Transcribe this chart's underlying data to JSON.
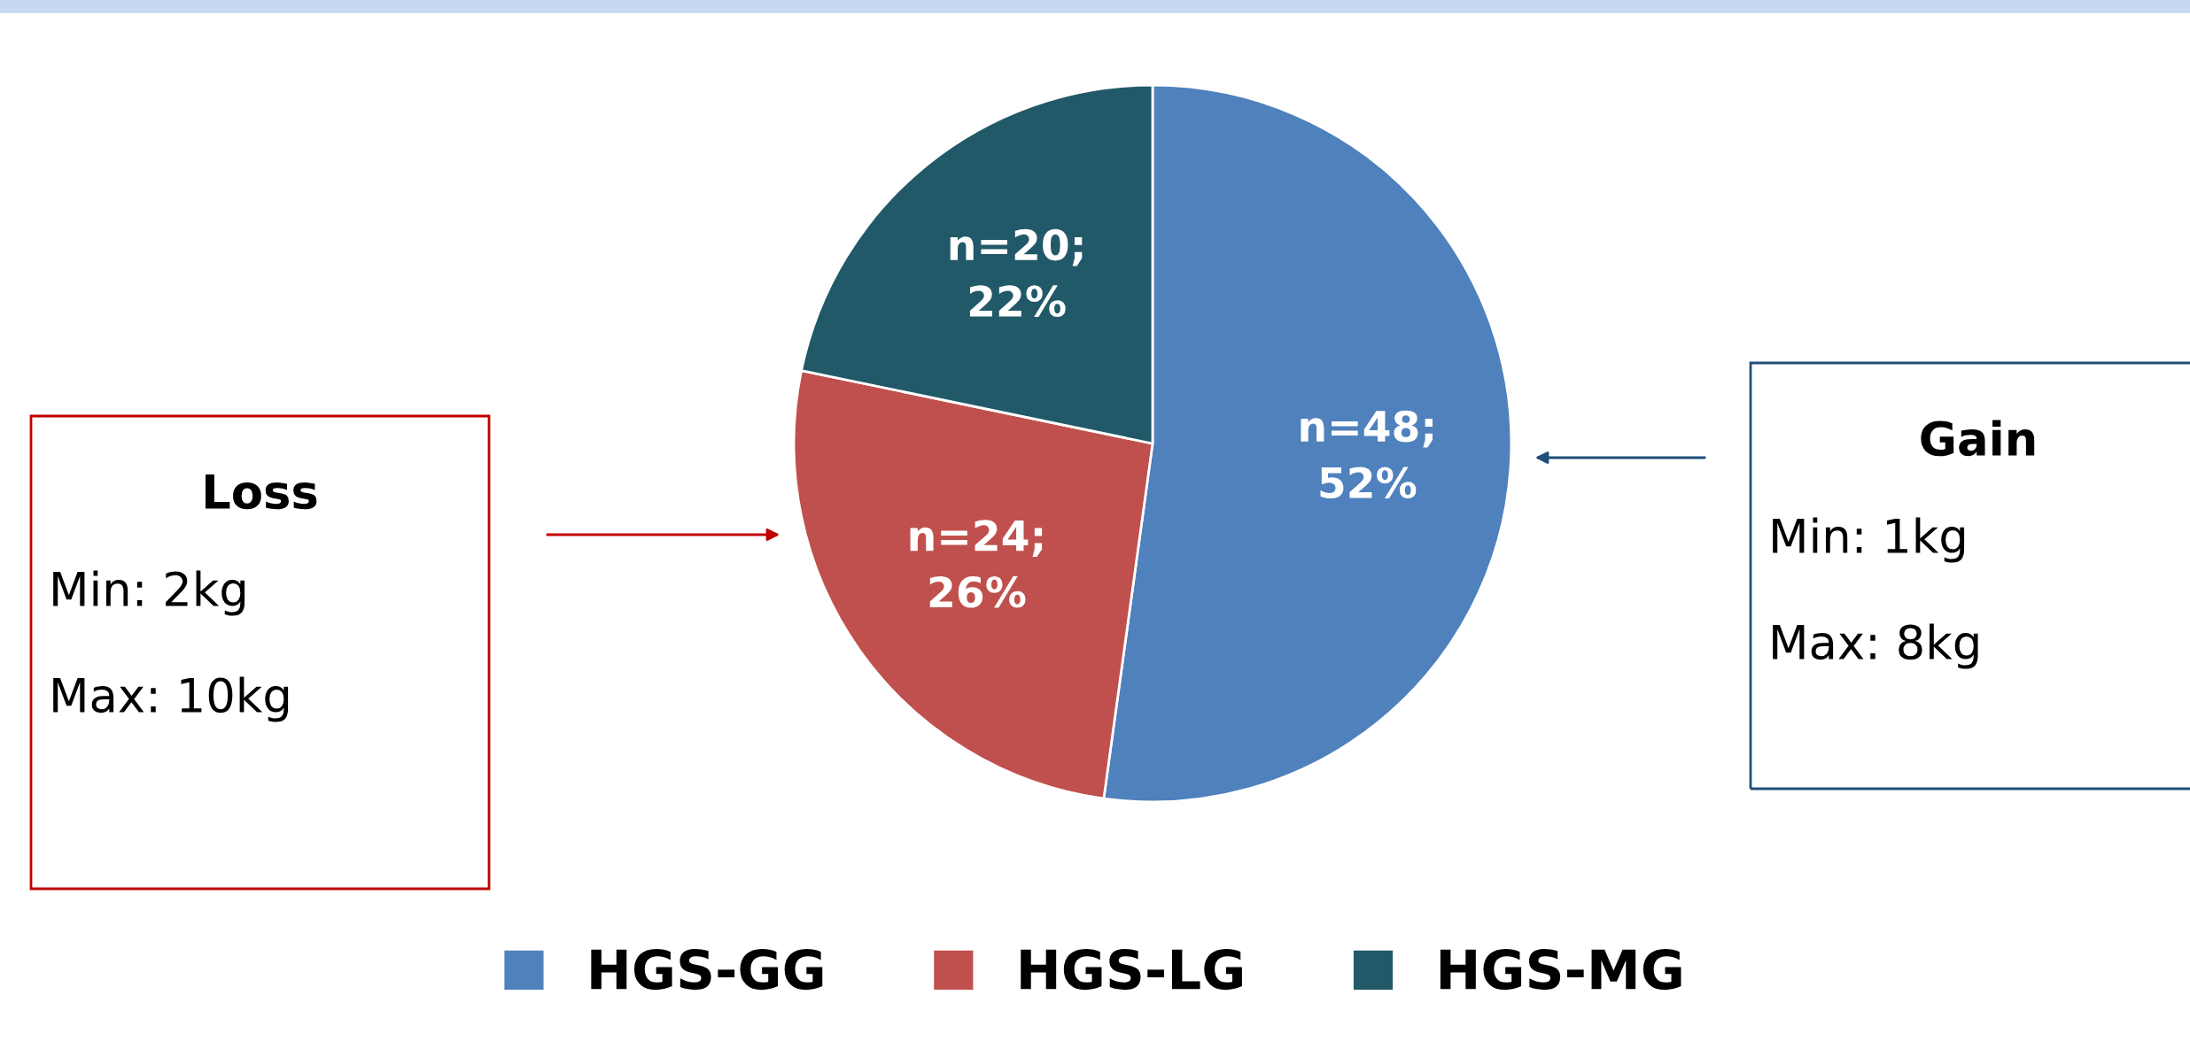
{
  "chart_data": {
    "type": "pie",
    "categories": [
      "HGS-GG",
      "HGS-LG",
      "HGS-MG"
    ],
    "values": [
      48,
      24,
      20
    ],
    "value_labels": [
      "n=48;\n52%",
      "n=24;\n26%",
      "n=20;\n22%"
    ],
    "colors": [
      "#4f81bd",
      "#c0504d",
      "#215968"
    ],
    "legend": "bottom",
    "annotations": [
      "Loss\nMin: 2kg\nMax: 10kg",
      "Gain\nMin: 1kg\nMax: 8kg"
    ]
  }
}
